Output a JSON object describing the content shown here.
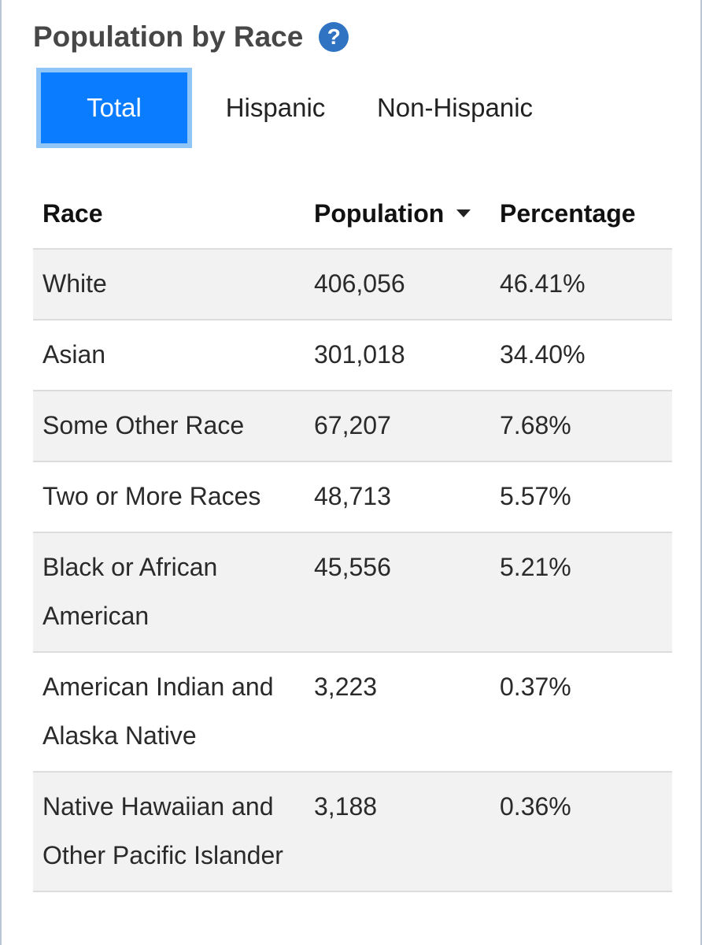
{
  "widget": {
    "title": "Population by Race",
    "help_glyph": "?"
  },
  "tabs": [
    {
      "label": "Total",
      "active": true
    },
    {
      "label": "Hispanic",
      "active": false
    },
    {
      "label": "Non-Hispanic",
      "active": false
    }
  ],
  "table": {
    "headers": {
      "race": "Race",
      "population": "Population",
      "percentage": "Percentage"
    },
    "sort_column": "population",
    "sort_direction": "descending",
    "rows": [
      {
        "race": "White",
        "population": "406,056",
        "percentage": "46.41%"
      },
      {
        "race": "Asian",
        "population": "301,018",
        "percentage": "34.40%"
      },
      {
        "race": "Some Other Race",
        "population": "67,207",
        "percentage": "7.68%"
      },
      {
        "race": "Two or More Races",
        "population": "48,713",
        "percentage": "5.57%"
      },
      {
        "race": "Black or African American",
        "population": "45,556",
        "percentage": "5.21%"
      },
      {
        "race": "American Indian and Alaska Native",
        "population": "3,223",
        "percentage": "0.37%"
      },
      {
        "race": "Native Hawaiian and Other Pacific Islander",
        "population": "3,188",
        "percentage": "0.36%"
      }
    ]
  },
  "colors": {
    "accent": "#0a7cff",
    "accent_border": "#8fc5f7",
    "help_icon": "#2f73c2",
    "row_shade": "#f2f2f2"
  }
}
